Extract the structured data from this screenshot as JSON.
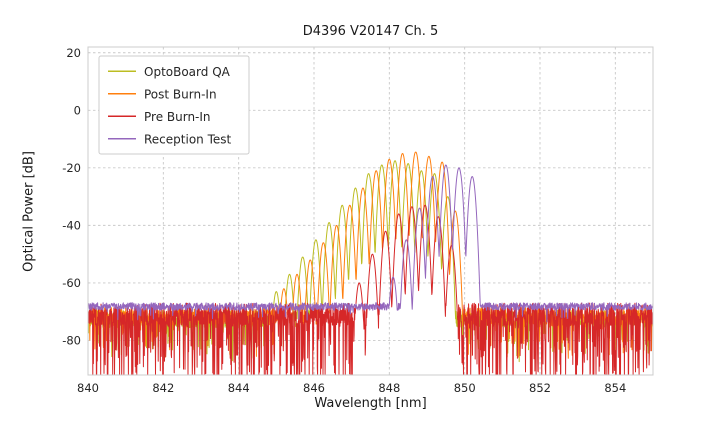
{
  "chart_data": {
    "type": "line",
    "title": "D4396 V20147 Ch. 5",
    "xlabel": "Wavelength [nm]",
    "ylabel": "Optical Power [dB]",
    "xlim": [
      840,
      855
    ],
    "ylim": [
      -92,
      22
    ],
    "x_ticks": [
      840,
      842,
      844,
      846,
      848,
      850,
      852,
      854
    ],
    "y_ticks": [
      20,
      0,
      -20,
      -40,
      -60,
      -80
    ],
    "grid": true,
    "grid_color": "#c9c9c9",
    "spine_color": "#cccccc",
    "tick_label_color": "#262626",
    "legend_position": "upper-left",
    "mode_width_nm": 0.175,
    "valley_depth_db": 30,
    "series": [
      {
        "name": "OptoBoard QA",
        "color": "#bcbd22",
        "noise_floor_db": -72.5,
        "noise_jitter_db": 3.0,
        "noise_spike_prob": 0.12,
        "noise_spike_depth_db": 13,
        "mode_peaks": [
          [
            845.0,
            -63
          ],
          [
            845.35,
            -57
          ],
          [
            845.7,
            -51
          ],
          [
            846.05,
            -45
          ],
          [
            846.4,
            -39
          ],
          [
            846.75,
            -33
          ],
          [
            847.1,
            -27
          ],
          [
            847.45,
            -22
          ],
          [
            847.8,
            -19
          ],
          [
            848.15,
            -17.5
          ],
          [
            848.5,
            -18.5
          ],
          [
            848.85,
            -21
          ],
          [
            849.2,
            -22
          ],
          [
            849.55,
            -30
          ]
        ]
      },
      {
        "name": "Post Burn-In",
        "color": "#ff7f0e",
        "noise_floor_db": -71.5,
        "noise_jitter_db": 3.0,
        "noise_spike_prob": 0.15,
        "noise_spike_depth_db": 13,
        "mode_peaks": [
          [
            845.2,
            -62
          ],
          [
            845.55,
            -57
          ],
          [
            845.9,
            -52
          ],
          [
            846.25,
            -46
          ],
          [
            846.6,
            -40
          ],
          [
            846.95,
            -33
          ],
          [
            847.3,
            -27
          ],
          [
            847.65,
            -21
          ],
          [
            848.0,
            -17
          ],
          [
            848.35,
            -15
          ],
          [
            848.7,
            -14.5
          ],
          [
            849.05,
            -16
          ],
          [
            849.4,
            -18
          ],
          [
            849.75,
            -35
          ]
        ]
      },
      {
        "name": "Pre Burn-In",
        "color": "#d62728",
        "noise_floor_db": -71.0,
        "noise_jitter_db": 4.0,
        "noise_spike_prob": 0.33,
        "noise_spike_depth_db": 28,
        "mode_peaks": [
          [
            847.2,
            -60
          ],
          [
            847.55,
            -50
          ],
          [
            847.9,
            -42
          ],
          [
            848.25,
            -36
          ],
          [
            848.6,
            -33.5
          ],
          [
            848.95,
            -33
          ],
          [
            849.3,
            -37
          ],
          [
            849.65,
            -47
          ]
        ]
      },
      {
        "name": "Reception Test",
        "color": "#9467bd",
        "noise_floor_db": -68.2,
        "noise_jitter_db": 1.3,
        "noise_spike_prob": 0.03,
        "noise_spike_depth_db": 5,
        "mode_peaks": [
          [
            848.1,
            -58
          ],
          [
            848.45,
            -45
          ],
          [
            848.8,
            -34
          ],
          [
            849.15,
            -23
          ],
          [
            849.5,
            -19
          ],
          [
            849.85,
            -20
          ],
          [
            850.2,
            -23
          ]
        ]
      }
    ]
  }
}
